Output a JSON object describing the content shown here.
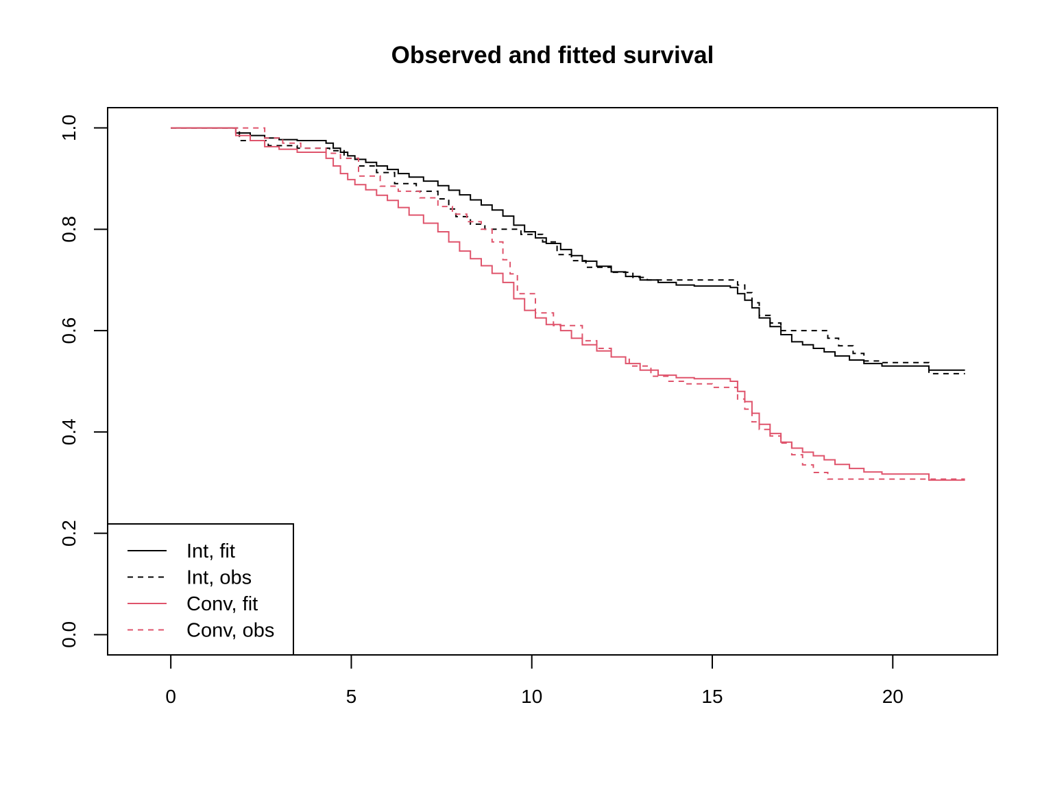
{
  "chart_data": {
    "type": "line",
    "title": "Observed and fitted survival",
    "xlabel": "",
    "ylabel": "",
    "xlim": [
      -1.75,
      22.9
    ],
    "ylim": [
      -0.04,
      1.04
    ],
    "x_ticks": [
      0,
      5,
      10,
      15,
      20
    ],
    "x_tick_labels": [
      "0",
      "5",
      "10",
      "15",
      "20"
    ],
    "y_ticks": [
      0.0,
      0.2,
      0.4,
      0.6,
      0.8,
      1.0
    ],
    "y_tick_labels": [
      "0.0",
      "0.2",
      "0.4",
      "0.6",
      "0.8",
      "1.0"
    ],
    "grid": false,
    "legend_position": "bottom-left",
    "step": true,
    "series": [
      {
        "name": "Int, fit",
        "color": "#000000",
        "linestyle": "solid",
        "x": [
          0,
          1.8,
          2.2,
          2.6,
          3.0,
          3.5,
          4.3,
          4.5,
          4.7,
          4.9,
          5.1,
          5.4,
          5.7,
          6.0,
          6.3,
          6.6,
          7.0,
          7.4,
          7.7,
          8.0,
          8.3,
          8.6,
          8.9,
          9.2,
          9.5,
          9.8,
          10.1,
          10.4,
          10.8,
          11.1,
          11.4,
          11.8,
          12.2,
          12.6,
          13.0,
          13.5,
          14.0,
          14.5,
          15.0,
          15.5,
          15.7,
          15.9,
          16.1,
          16.3,
          16.6,
          16.9,
          17.2,
          17.5,
          17.8,
          18.1,
          18.4,
          18.8,
          19.2,
          19.7,
          20.2,
          21.0,
          22.0
        ],
        "y": [
          1.0,
          0.99,
          0.985,
          0.98,
          0.977,
          0.975,
          0.97,
          0.96,
          0.952,
          0.945,
          0.938,
          0.932,
          0.925,
          0.918,
          0.91,
          0.903,
          0.895,
          0.886,
          0.877,
          0.868,
          0.858,
          0.848,
          0.838,
          0.826,
          0.808,
          0.795,
          0.783,
          0.772,
          0.76,
          0.748,
          0.737,
          0.727,
          0.716,
          0.707,
          0.7,
          0.695,
          0.69,
          0.688,
          0.688,
          0.685,
          0.673,
          0.66,
          0.645,
          0.625,
          0.608,
          0.592,
          0.578,
          0.572,
          0.565,
          0.558,
          0.55,
          0.542,
          0.535,
          0.53,
          0.53,
          0.522,
          0.522
        ]
      },
      {
        "name": "Int, obs",
        "color": "#000000",
        "linestyle": "dashed",
        "x": [
          0,
          1.9,
          2.7,
          3.5,
          4.4,
          4.8,
          5.2,
          5.7,
          6.2,
          6.8,
          7.4,
          7.7,
          7.9,
          8.3,
          8.7,
          9.4,
          9.7,
          10.3,
          10.7,
          11.1,
          11.5,
          12.2,
          12.8,
          13.2,
          14.0,
          14.5,
          15.0,
          15.5,
          15.7,
          15.9,
          16.1,
          16.3,
          16.6,
          16.9,
          17.3,
          17.8,
          18.2,
          18.5,
          18.9,
          19.2,
          19.7,
          21.0,
          22.0
        ],
        "y": [
          1.0,
          0.975,
          0.965,
          0.96,
          0.955,
          0.94,
          0.925,
          0.912,
          0.89,
          0.875,
          0.86,
          0.84,
          0.825,
          0.81,
          0.8,
          0.8,
          0.79,
          0.775,
          0.75,
          0.738,
          0.725,
          0.715,
          0.705,
          0.7,
          0.7,
          0.7,
          0.7,
          0.7,
          0.69,
          0.675,
          0.655,
          0.63,
          0.615,
          0.6,
          0.6,
          0.6,
          0.585,
          0.57,
          0.555,
          0.54,
          0.537,
          0.515,
          0.515
        ]
      },
      {
        "name": "Conv, fit",
        "color": "#DF536B",
        "linestyle": "solid",
        "x": [
          0,
          1.8,
          2.2,
          2.6,
          3.0,
          3.5,
          4.3,
          4.5,
          4.7,
          4.9,
          5.1,
          5.4,
          5.7,
          6.0,
          6.3,
          6.6,
          7.0,
          7.4,
          7.7,
          8.0,
          8.3,
          8.6,
          8.9,
          9.2,
          9.5,
          9.8,
          10.1,
          10.4,
          10.8,
          11.1,
          11.4,
          11.8,
          12.2,
          12.6,
          13.0,
          13.5,
          14.0,
          14.5,
          15.0,
          15.5,
          15.7,
          15.9,
          16.1,
          16.3,
          16.6,
          16.9,
          17.2,
          17.5,
          17.8,
          18.1,
          18.4,
          18.8,
          19.2,
          19.7,
          20.2,
          21.0,
          22.0
        ],
        "y": [
          1.0,
          0.985,
          0.975,
          0.963,
          0.958,
          0.952,
          0.94,
          0.925,
          0.91,
          0.898,
          0.888,
          0.878,
          0.867,
          0.857,
          0.843,
          0.828,
          0.812,
          0.795,
          0.775,
          0.757,
          0.742,
          0.728,
          0.713,
          0.695,
          0.663,
          0.64,
          0.625,
          0.612,
          0.6,
          0.585,
          0.572,
          0.56,
          0.548,
          0.535,
          0.522,
          0.512,
          0.507,
          0.505,
          0.505,
          0.5,
          0.48,
          0.46,
          0.437,
          0.415,
          0.397,
          0.38,
          0.368,
          0.36,
          0.353,
          0.345,
          0.336,
          0.328,
          0.321,
          0.317,
          0.317,
          0.305,
          0.305
        ]
      },
      {
        "name": "Conv, obs",
        "color": "#DF536B",
        "linestyle": "dashed",
        "x": [
          0,
          1.9,
          2.6,
          3.1,
          3.6,
          4.3,
          4.7,
          5.2,
          5.8,
          6.3,
          6.9,
          7.4,
          7.8,
          8.2,
          8.6,
          8.9,
          9.2,
          9.4,
          9.6,
          10.1,
          10.6,
          11.4,
          11.8,
          12.2,
          12.7,
          13.3,
          13.8,
          14.3,
          15.0,
          15.5,
          15.7,
          15.9,
          16.1,
          16.3,
          16.6,
          16.9,
          17.2,
          17.5,
          17.8,
          18.2,
          19.0,
          20.0,
          22.0
        ],
        "y": [
          1.0,
          1.0,
          0.98,
          0.97,
          0.96,
          0.95,
          0.94,
          0.905,
          0.885,
          0.875,
          0.862,
          0.845,
          0.83,
          0.815,
          0.8,
          0.775,
          0.74,
          0.712,
          0.673,
          0.635,
          0.61,
          0.58,
          0.565,
          0.548,
          0.53,
          0.51,
          0.5,
          0.495,
          0.488,
          0.488,
          0.465,
          0.445,
          0.42,
          0.405,
          0.392,
          0.378,
          0.355,
          0.335,
          0.32,
          0.307,
          0.307,
          0.307,
          0.307
        ]
      }
    ]
  }
}
